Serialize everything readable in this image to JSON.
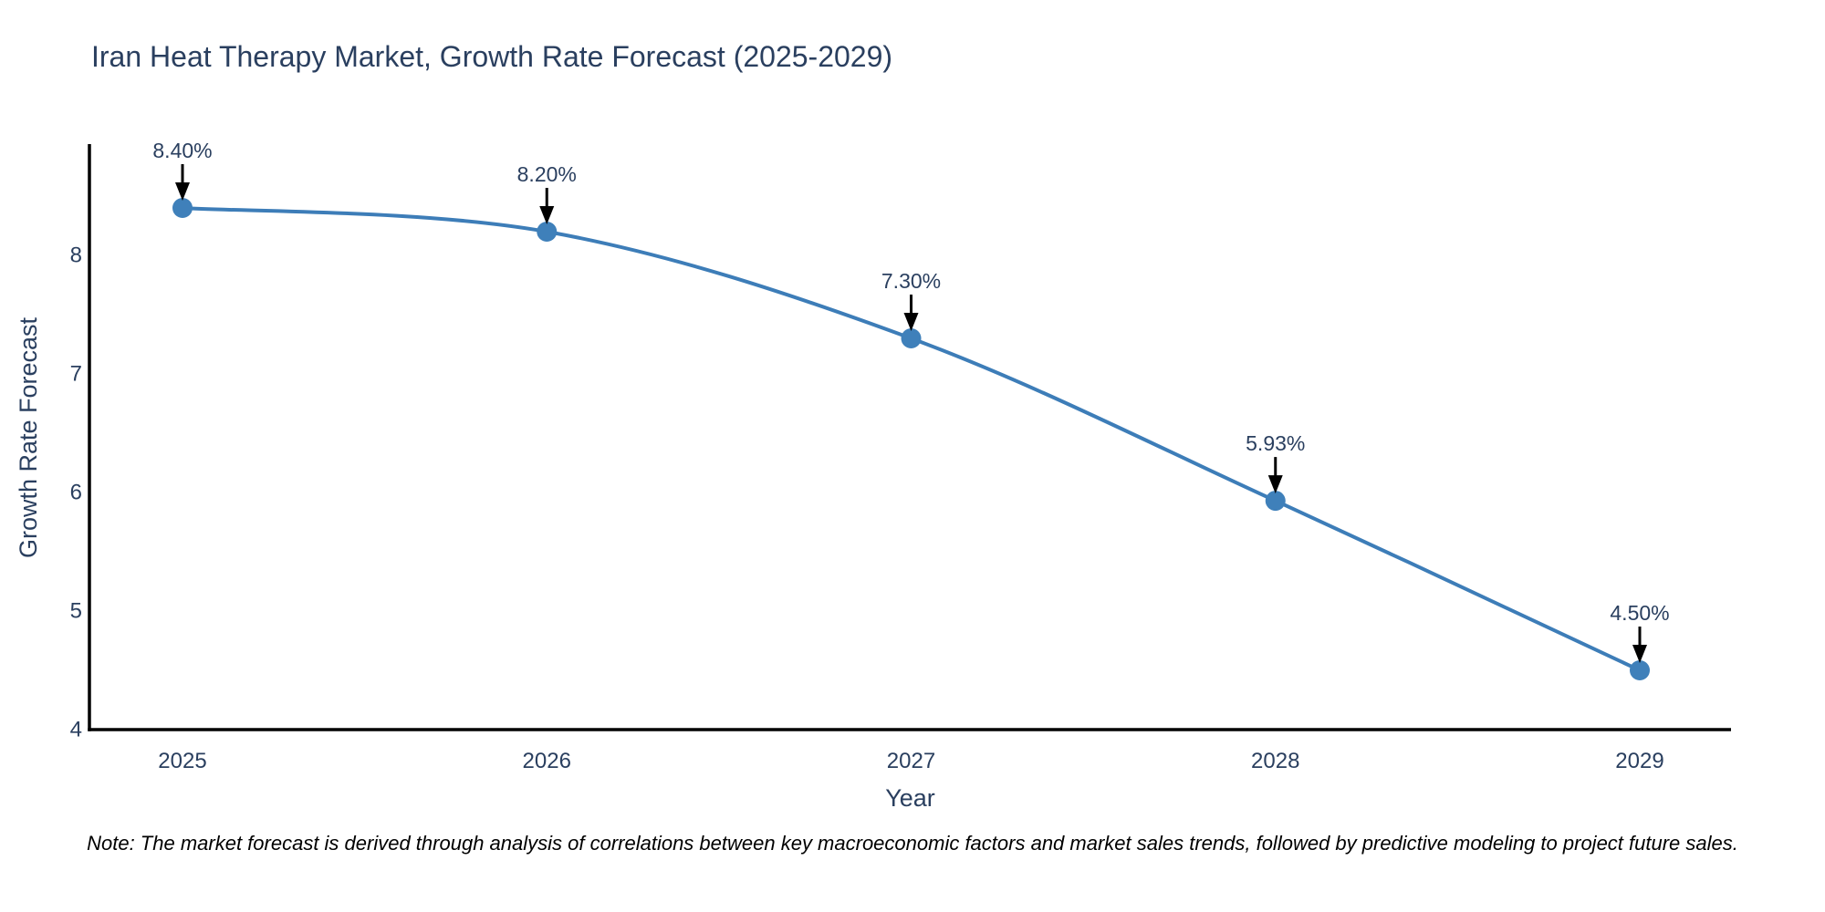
{
  "chart_data": {
    "type": "line",
    "title": "Iran Heat Therapy Market, Growth Rate Forecast (2025-2029)",
    "xlabel": "Year",
    "ylabel": "Growth Rate Forecast",
    "categories": [
      "2025",
      "2026",
      "2027",
      "2028",
      "2029"
    ],
    "series": [
      {
        "name": "Growth Rate Forecast",
        "values": [
          8.4,
          8.2,
          7.3,
          5.93,
          4.5
        ]
      }
    ],
    "point_labels": [
      "8.40%",
      "8.20%",
      "7.30%",
      "5.93%",
      "4.50%"
    ],
    "y_ticks": [
      4,
      5,
      6,
      7,
      8
    ],
    "ylim": [
      4,
      8.95
    ],
    "line_shape": "spline",
    "grid": false,
    "legend": "none",
    "annotation_style": "value label with downward black arrow above each data point",
    "note": "Note: The market forecast is derived through analysis of correlations between key macroeconomic factors and market sales trends, followed by predictive modeling to project future sales.",
    "colors": {
      "line": "#3d7db8",
      "marker": "#3f80ba",
      "axis_line": "#000000",
      "text": "#2a3f5f",
      "annotation_arrow": "#000000",
      "note_text": "#000000",
      "background": "#ffffff"
    }
  }
}
